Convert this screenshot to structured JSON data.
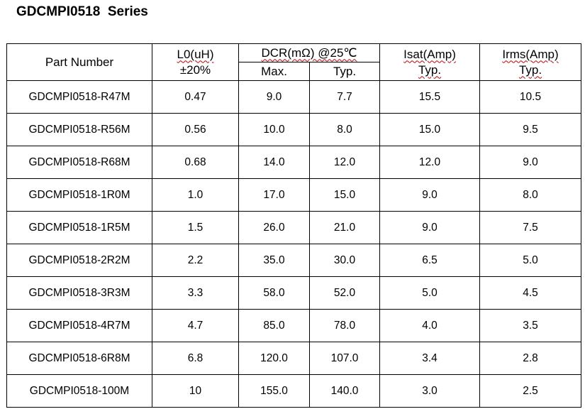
{
  "title": "GDCMPI0518  Series",
  "header": {
    "part_number": "Part Number",
    "inductance_line1": "L0(uH)",
    "inductance_line2": "±20%",
    "dcr": "DCR(mΩ) @25℃",
    "dcr_max": "Max.",
    "dcr_typ": "Typ.",
    "isat_line1": "Isat(Amp)",
    "isat_line2": "Typ.",
    "irms_line1": "Irms(Amp)",
    "irms_line2": "Typ."
  },
  "rows": [
    {
      "part": "GDCMPI0518-R47M",
      "l0": "0.47",
      "dcr_max": "9.0",
      "dcr_typ": "7.7",
      "isat": "15.5",
      "irms": "10.5"
    },
    {
      "part": "GDCMPI0518-R56M",
      "l0": "0.56",
      "dcr_max": "10.0",
      "dcr_typ": "8.0",
      "isat": "15.0",
      "irms": "9.5"
    },
    {
      "part": "GDCMPI0518-R68M",
      "l0": "0.68",
      "dcr_max": "14.0",
      "dcr_typ": "12.0",
      "isat": "12.0",
      "irms": "9.0"
    },
    {
      "part": "GDCMPI0518-1R0M",
      "l0": "1.0",
      "dcr_max": "17.0",
      "dcr_typ": "15.0",
      "isat": "9.0",
      "irms": "8.0"
    },
    {
      "part": "GDCMPI0518-1R5M",
      "l0": "1.5",
      "dcr_max": "26.0",
      "dcr_typ": "21.0",
      "isat": "9.0",
      "irms": "7.5"
    },
    {
      "part": "GDCMPI0518-2R2M",
      "l0": "2.2",
      "dcr_max": "35.0",
      "dcr_typ": "30.0",
      "isat": "6.5",
      "irms": "5.0"
    },
    {
      "part": "GDCMPI0518-3R3M",
      "l0": "3.3",
      "dcr_max": "58.0",
      "dcr_typ": "52.0",
      "isat": "5.0",
      "irms": "4.5"
    },
    {
      "part": "GDCMPI0518-4R7M",
      "l0": "4.7",
      "dcr_max": "85.0",
      "dcr_typ": "78.0",
      "isat": "4.0",
      "irms": "3.5"
    },
    {
      "part": "GDCMPI0518-6R8M",
      "l0": "6.8",
      "dcr_max": "120.0",
      "dcr_typ": "107.0",
      "isat": "3.4",
      "irms": "2.8"
    },
    {
      "part": "GDCMPI0518-100M",
      "l0": "10",
      "dcr_max": "155.0",
      "dcr_typ": "140.0",
      "isat": "3.0",
      "irms": "2.5"
    }
  ]
}
